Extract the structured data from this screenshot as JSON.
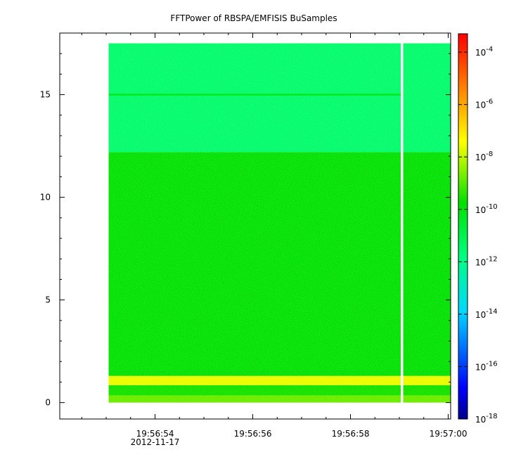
{
  "chart_data": {
    "type": "heatmap",
    "title": "FFTPower of RBSPA/EMFISIS  BuSamples",
    "xlabel": "",
    "ylabel": "",
    "x_range": [
      "19:56:52.05",
      "19:57:00.05"
    ],
    "y_range": [
      -0.8,
      18.0
    ],
    "x_ticks": [
      {
        "label": "19:56:54",
        "sublabel": "2012-11-17",
        "t": "19:56:54"
      },
      {
        "label": "19:56:56",
        "sublabel": "",
        "t": "19:56:56"
      },
      {
        "label": "19:56:58",
        "sublabel": "",
        "t": "19:56:58"
      },
      {
        "label": "19:57:00",
        "sublabel": "",
        "t": "19:57:00"
      }
    ],
    "y_ticks": [
      0,
      5,
      10,
      15
    ],
    "data_time_range": [
      "19:56:53.05",
      "19:57:00.05"
    ],
    "data_gap_at": "19:56:59.05",
    "data_freq_range": [
      0,
      17.5
    ],
    "bands": [
      {
        "from": 0.0,
        "to": 0.35,
        "log10_power": -8.8
      },
      {
        "from": 0.35,
        "to": 0.85,
        "log10_power": -9.6
      },
      {
        "from": 0.85,
        "to": 1.3,
        "log10_power": -7.6
      },
      {
        "from": 1.3,
        "to": 12.2,
        "log10_power": -9.9
      },
      {
        "from": 12.2,
        "to": 17.5,
        "log10_power": -11.6
      }
    ],
    "line_feature": {
      "freq": 15.0,
      "log10_power": -10.2
    },
    "colorbar": {
      "scale": "log",
      "range_exponent": [
        -18,
        -3.3
      ],
      "ticks": [
        {
          "base": "10",
          "exp": "-4",
          "value": -4
        },
        {
          "base": "10",
          "exp": "-6",
          "value": -6
        },
        {
          "base": "10",
          "exp": "-8",
          "value": -8
        },
        {
          "base": "10",
          "exp": "-10",
          "value": -10
        },
        {
          "base": "10",
          "exp": "-12",
          "value": -12
        },
        {
          "base": "10",
          "exp": "-14",
          "value": -14
        },
        {
          "base": "10",
          "exp": "-16",
          "value": -16
        },
        {
          "base": "10",
          "exp": "-18",
          "value": -18
        }
      ],
      "colors": [
        "#00008c",
        "#0000ff",
        "#00d8ff",
        "#00ff80",
        "#00e000",
        "#ffff00",
        "#ff8000",
        "#ff0000"
      ]
    }
  }
}
